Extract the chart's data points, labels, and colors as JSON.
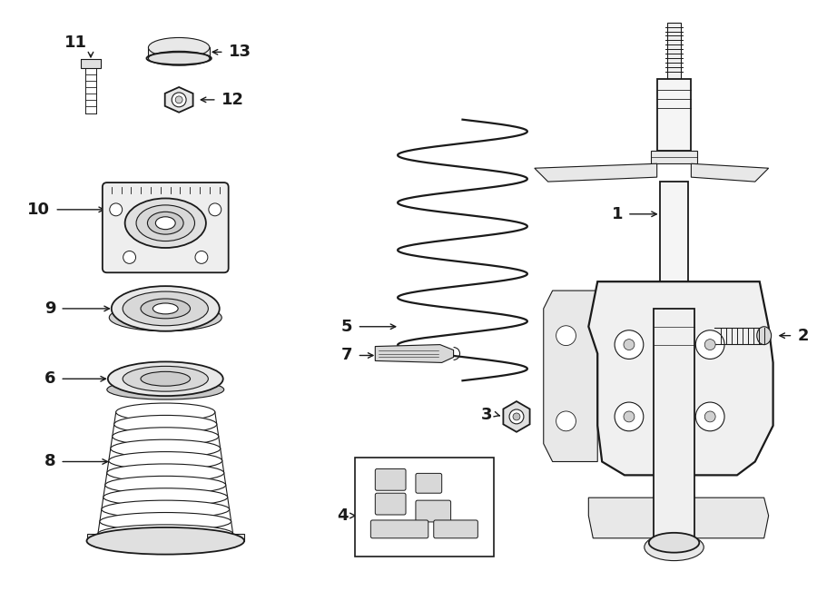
{
  "bg_color": "#ffffff",
  "line_color": "#1a1a1a",
  "label_color": "#000000",
  "fig_width": 9.0,
  "fig_height": 6.62,
  "dpi": 100
}
